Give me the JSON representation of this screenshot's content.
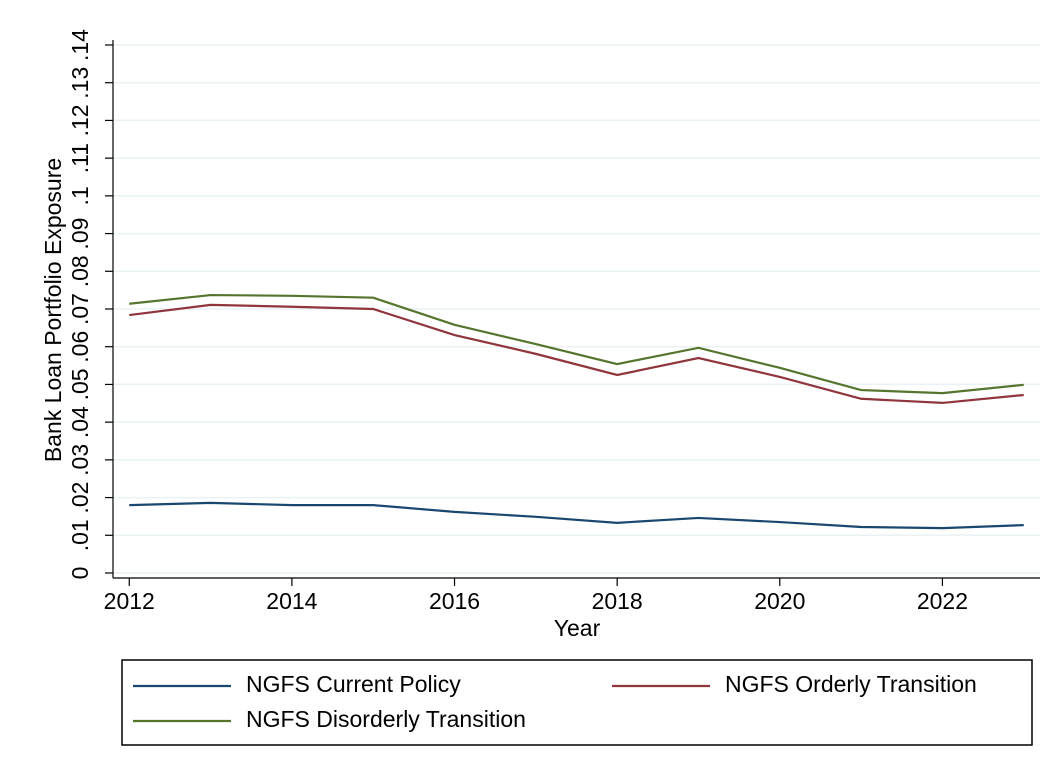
{
  "chart_data": {
    "type": "line",
    "x_label": "Year",
    "y_label": "Bank Loan Portfolio Exposure",
    "x": [
      2012,
      2013,
      2014,
      2015,
      2016,
      2017,
      2018,
      2019,
      2020,
      2021,
      2022,
      2023
    ],
    "series": [
      {
        "name": "NGFS Current Policy",
        "color": "#1a476f",
        "values": [
          0.018,
          0.0186,
          0.018,
          0.018,
          0.0162,
          0.0149,
          0.0133,
          0.0146,
          0.0135,
          0.0122,
          0.0119,
          0.0127
        ]
      },
      {
        "name": "NGFS Orderly Transition",
        "color": "#90353b",
        "values": [
          0.0684,
          0.0711,
          0.0706,
          0.07,
          0.0631,
          0.0581,
          0.0525,
          0.057,
          0.052,
          0.0462,
          0.0451,
          0.0472
        ]
      },
      {
        "name": "NGFS Disorderly Transition",
        "color": "#55752f",
        "values": [
          0.0714,
          0.0737,
          0.0735,
          0.073,
          0.0658,
          0.0607,
          0.0554,
          0.0597,
          0.0544,
          0.0485,
          0.0477,
          0.0499
        ]
      }
    ],
    "xlim": [
      2011.8,
      2023.2
    ],
    "xticks": [
      2012,
      2014,
      2016,
      2018,
      2020,
      2022
    ],
    "ylim": [
      0,
      0.14
    ],
    "yticks": [
      0,
      {
        "value": 0.01,
        "label": ".01"
      },
      {
        "value": 0.02,
        "label": ".02"
      },
      {
        "value": 0.03,
        "label": ".03"
      },
      {
        "value": 0.04,
        "label": ".04"
      },
      {
        "value": 0.05,
        "label": ".05"
      },
      {
        "value": 0.06,
        "label": ".06"
      },
      {
        "value": 0.07,
        "label": ".07"
      },
      {
        "value": 0.08,
        "label": ".08"
      },
      {
        "value": 0.09,
        "label": ".09"
      },
      {
        "value": 0.1,
        "label": ".1"
      },
      {
        "value": 0.11,
        "label": ".11"
      },
      {
        "value": 0.12,
        "label": ".12"
      },
      {
        "value": 0.13,
        "label": ".13"
      },
      {
        "value": 0.14,
        "label": ".14"
      }
    ],
    "grid": true,
    "legend": "bottom"
  }
}
